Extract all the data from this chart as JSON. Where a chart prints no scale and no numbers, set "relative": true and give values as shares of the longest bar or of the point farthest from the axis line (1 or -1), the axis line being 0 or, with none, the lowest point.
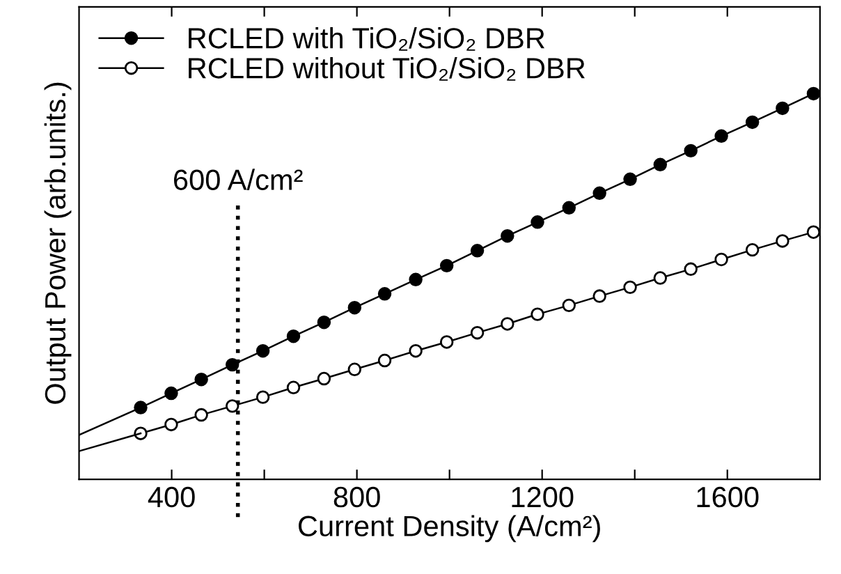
{
  "chart_data": {
    "type": "line",
    "relative": true,
    "xlabel": "Current Density (A/cm²)",
    "ylabel": "Output Power (arb.units.)",
    "xlim": [
      200,
      1800
    ],
    "xticks": [
      400,
      {
        "value": 600,
        "label": null
      },
      800,
      {
        "value": 1000,
        "label": null
      },
      1200,
      {
        "value": 1400,
        "label": null
      },
      1600
    ],
    "tick_labels": "x",
    "legend": "top left",
    "grid": false,
    "series": [
      {
        "name": "RCLED with TiO₂/SiO₂ DBR",
        "color": "#000000",
        "marker": "circle",
        "x": [
          333,
          399,
          464,
          531,
          597,
          663,
          729,
          795,
          860,
          927,
          994,
          1060,
          1125,
          1190,
          1258,
          1324,
          1390,
          1455,
          1521,
          1587,
          1654,
          1719,
          1786
        ],
        "values": [
          0.186,
          0.223,
          0.259,
          0.297,
          0.333,
          0.371,
          0.407,
          0.445,
          0.481,
          0.518,
          0.554,
          0.593,
          0.631,
          0.667,
          0.704,
          0.742,
          0.778,
          0.816,
          0.852,
          0.89,
          0.926,
          0.962,
          1.0
        ]
      },
      {
        "name": "RCLED without TiO₂/SiO₂ DBR",
        "color": "#ffffff",
        "marker": "circle",
        "x": [
          333,
          399,
          464,
          531,
          597,
          663,
          729,
          795,
          860,
          927,
          994,
          1060,
          1125,
          1190,
          1258,
          1324,
          1390,
          1455,
          1521,
          1587,
          1654,
          1719,
          1786
        ],
        "values": [
          0.119,
          0.142,
          0.167,
          0.19,
          0.213,
          0.238,
          0.261,
          0.285,
          0.308,
          0.333,
          0.356,
          0.38,
          0.403,
          0.428,
          0.451,
          0.475,
          0.498,
          0.522,
          0.545,
          0.57,
          0.595,
          0.618,
          0.641
        ]
      },
      {
        "type": "line",
        "color": "#000000",
        "marker": "none",
        "x": [
          200,
          333
        ],
        "values": [
          0.115,
          0.186
        ]
      },
      {
        "type": "line",
        "color": "#000000",
        "marker": "none",
        "x": [
          200,
          333
        ],
        "values": [
          0.073,
          0.119
        ]
      }
    ],
    "ref_lines": [
      {
        "axis": "x",
        "value": 543,
        "label": "600 A/cm²",
        "line_style": "dotted",
        "color": "#000000"
      }
    ]
  }
}
